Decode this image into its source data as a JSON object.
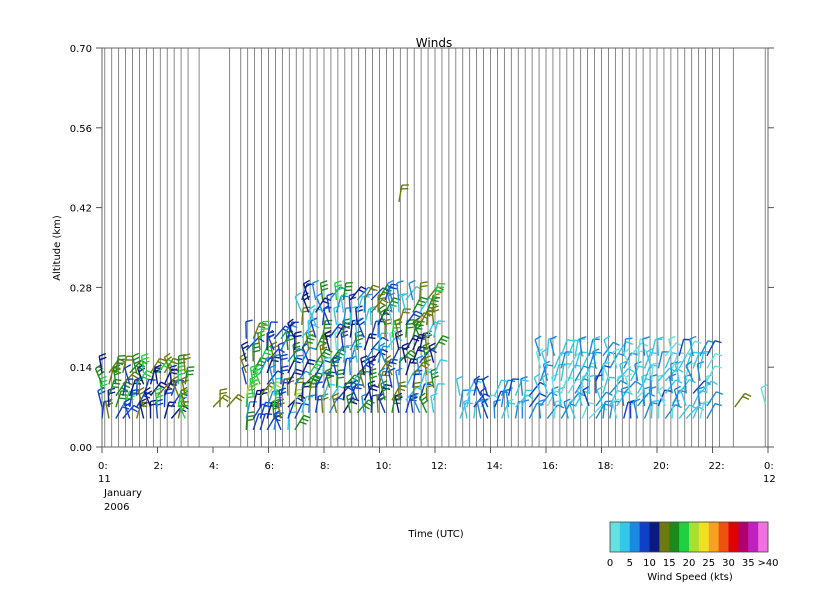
{
  "chart_data": {
    "type": "wind_barbs",
    "title": "Winds",
    "xlabel": "Time (UTC)",
    "ylabel": "Altitude (km)",
    "ylim": [
      0.0,
      0.7
    ],
    "xlim_hours": [
      0,
      24
    ],
    "y_ticks": [
      "0.00",
      "0.14",
      "0.28",
      "0.42",
      "0.56",
      "0.70"
    ],
    "x_ticks": [
      {
        "h": 0,
        "label": "0:"
      },
      {
        "h": 2,
        "label": "2:"
      },
      {
        "h": 4,
        "label": "4:"
      },
      {
        "h": 6,
        "label": "6:"
      },
      {
        "h": 8,
        "label": "8:"
      },
      {
        "h": 10,
        "label": "10:"
      },
      {
        "h": 12,
        "label": "12:"
      },
      {
        "h": 14,
        "label": "14:"
      },
      {
        "h": 16,
        "label": "16:"
      },
      {
        "h": 18,
        "label": "18:"
      },
      {
        "h": 20,
        "label": "20:"
      },
      {
        "h": 22,
        "label": "22:"
      },
      {
        "h": 24,
        "label": "0:"
      }
    ],
    "date_start": {
      "day": "11",
      "month": "January",
      "year": "2006"
    },
    "date_end": {
      "day": "12"
    },
    "profile_times_hours": [
      0.1,
      0.35,
      0.6,
      0.85,
      1.1,
      1.35,
      1.6,
      1.85,
      2.1,
      2.35,
      2.6,
      2.85,
      3.1,
      3.5,
      4.6,
      5.0,
      5.25,
      5.5,
      5.75,
      6.0,
      6.25,
      6.5,
      6.75,
      7.0,
      7.25,
      7.5,
      7.75,
      8.0,
      8.25,
      8.5,
      8.75,
      9.0,
      9.25,
      9.5,
      9.75,
      10.0,
      10.25,
      10.5,
      10.75,
      11.0,
      11.25,
      11.5,
      11.75,
      12.0,
      12.25,
      12.5,
      12.75,
      13.0,
      13.25,
      13.5,
      13.75,
      14.0,
      14.25,
      14.5,
      14.75,
      15.0,
      15.25,
      15.5,
      15.75,
      16.0,
      16.25,
      16.5,
      16.75,
      17.0,
      17.25,
      17.5,
      17.75,
      18.0,
      18.25,
      18.5,
      18.75,
      19.0,
      19.25,
      19.5,
      19.75,
      20.0,
      20.25,
      20.5,
      20.75,
      21.0,
      21.25,
      21.5,
      21.75,
      22.0,
      22.25,
      22.75,
      23.9
    ],
    "colorbar": {
      "title": "Wind Speed (kts)",
      "tick_labels": [
        "0",
        "5",
        "10",
        "15",
        "20",
        "25",
        "30",
        "35",
        ">40"
      ],
      "colors": [
        "#66e0e0",
        "#33c8e8",
        "#1a8ae0",
        "#1040c8",
        "#0a1a80",
        "#6e7a10",
        "#1a8a1a",
        "#20d040",
        "#a8e030",
        "#f0e020",
        "#f8a020",
        "#f05010",
        "#e00000",
        "#b00070",
        "#c020c0",
        "#f070e0"
      ]
    },
    "barb_groups": [
      {
        "t_start": 0.0,
        "t_end": 3.1,
        "dt": 0.25,
        "alt_min": 0.05,
        "alt_max": 0.14,
        "dalt": 0.02,
        "speed_min": 8,
        "speed_max": 20
      },
      {
        "t_start": 4.0,
        "t_end": 4.5,
        "dt": 0.25,
        "alt_min": 0.07,
        "alt_max": 0.08,
        "dalt": 0.02,
        "speed_min": 12,
        "speed_max": 15
      },
      {
        "t_start": 5.2,
        "t_end": 7.0,
        "dt": 0.25,
        "alt_min": 0.03,
        "alt_max": 0.2,
        "dalt": 0.02,
        "speed_min": 4,
        "speed_max": 22
      },
      {
        "t_start": 7.2,
        "t_end": 12.0,
        "dt": 0.25,
        "alt_min": 0.06,
        "alt_max": 0.27,
        "dalt": 0.022,
        "speed_min": 2,
        "speed_max": 18
      },
      {
        "t_start": 10.7,
        "t_end": 10.9,
        "dt": 0.25,
        "alt_min": 0.43,
        "alt_max": 0.43,
        "dalt": 0.02,
        "speed_min": 14,
        "speed_max": 14
      },
      {
        "t_start": 12.9,
        "t_end": 15.6,
        "dt": 0.25,
        "alt_min": 0.05,
        "alt_max": 0.1,
        "dalt": 0.02,
        "speed_min": 2,
        "speed_max": 9
      },
      {
        "t_start": 15.8,
        "t_end": 21.8,
        "dt": 0.25,
        "alt_min": 0.05,
        "alt_max": 0.18,
        "dalt": 0.022,
        "speed_min": 1,
        "speed_max": 8
      },
      {
        "t_start": 22.8,
        "t_end": 23.0,
        "dt": 0.25,
        "alt_min": 0.07,
        "alt_max": 0.07,
        "dalt": 0.02,
        "speed_min": 14,
        "speed_max": 14
      },
      {
        "t_start": 23.9,
        "t_end": 24.0,
        "dt": 0.25,
        "alt_min": 0.075,
        "alt_max": 0.075,
        "dalt": 0.02,
        "speed_min": 1,
        "speed_max": 1
      }
    ]
  }
}
